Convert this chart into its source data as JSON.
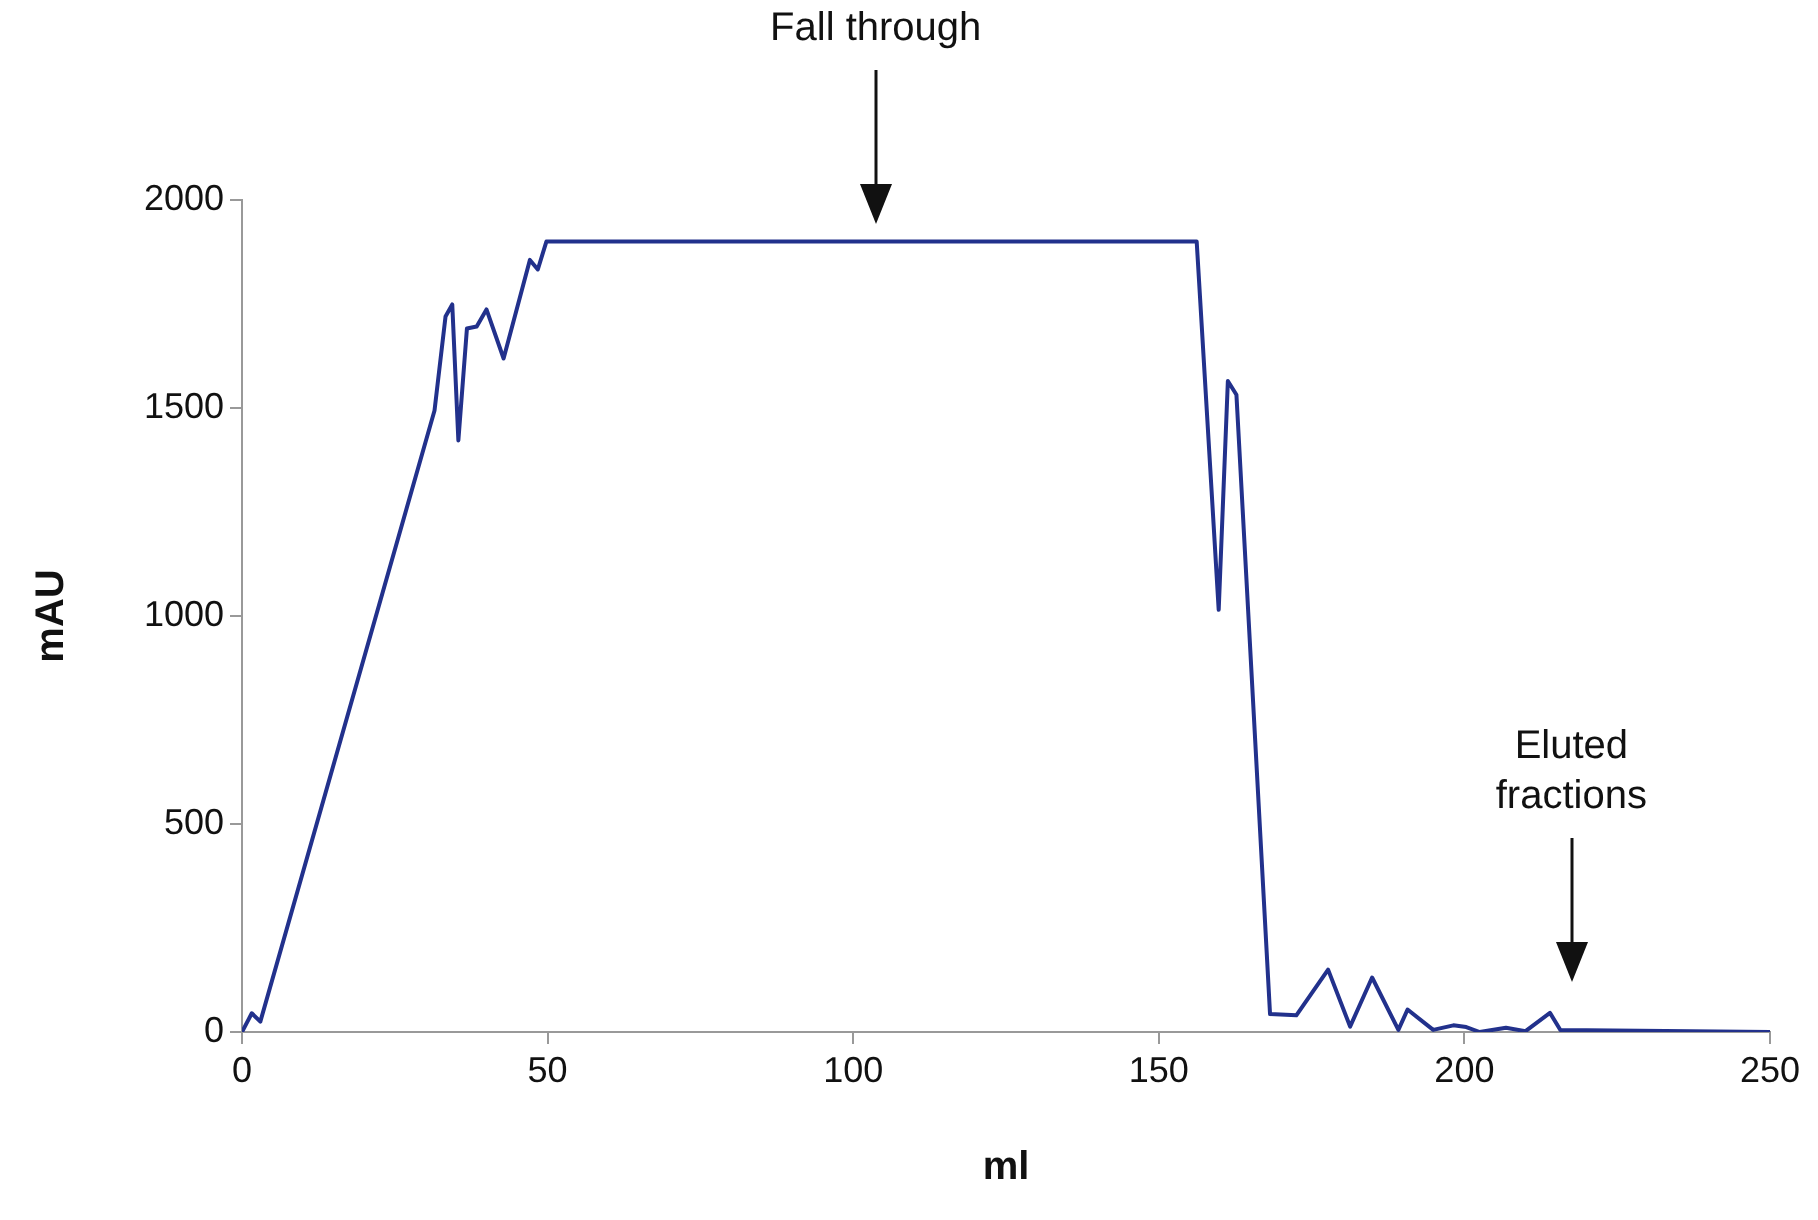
{
  "chart_data": {
    "type": "line",
    "xlabel": "ml",
    "ylabel": "mAU",
    "xlim": [
      0,
      250
    ],
    "xticks": [
      0,
      50,
      100,
      150,
      200,
      250
    ],
    "ylim": [
      0,
      2000
    ],
    "yticks": [
      0,
      500,
      1000,
      1500,
      2000
    ],
    "grid": false,
    "legend": false,
    "marker": "none",
    "line_style": "solid",
    "x": [
      0,
      1.6,
      3,
      31.5,
      33.3,
      34.4,
      35.4,
      36.8,
      38.4,
      40,
      42.8,
      47.1,
      48.4,
      49.8,
      156.2,
      159.8,
      161.3,
      162.7,
      168.2,
      172.5,
      177.7,
      181.3,
      184.9,
      189.2,
      190.7,
      194.9,
      198.2,
      200.3,
      202.5,
      206.8,
      210,
      214,
      215.7,
      250
    ],
    "series": [
      {
        "color": "#22318c",
        "values": [
          0,
          45,
          25,
          1494,
          1720,
          1749,
          1422,
          1691,
          1696,
          1737,
          1619,
          1856,
          1833,
          1900,
          1900,
          1015,
          1565,
          1532,
          43,
          40,
          150,
          13,
          131,
          5,
          54,
          5,
          16,
          12,
          0,
          10,
          2,
          46,
          5,
          0
        ]
      }
    ],
    "annotations": [
      "Fall through",
      "Eluted fractions"
    ]
  }
}
